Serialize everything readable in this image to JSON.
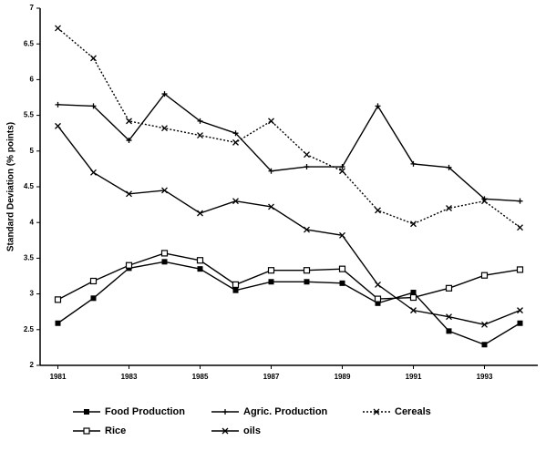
{
  "chart_data": {
    "type": "line",
    "y_label": "Standard Deviation (% points)",
    "x": [
      1981,
      1982,
      1983,
      1984,
      1985,
      1986,
      1987,
      1988,
      1989,
      1990,
      1991,
      1992,
      1993,
      1994
    ],
    "xlim": [
      1980.5,
      1994.5
    ],
    "xticks": [
      1981,
      1983,
      1985,
      1987,
      1989,
      1991,
      1993
    ],
    "ylim": [
      2,
      7
    ],
    "yticks": [
      2,
      2.5,
      3,
      3.5,
      4,
      4.5,
      5,
      5.5,
      6,
      6.5,
      7
    ],
    "legend": "bottom",
    "series": [
      {
        "name": "Food Production",
        "color": "#000000",
        "marker": "filled-square",
        "dash": "solid",
        "values": [
          2.59,
          2.94,
          3.36,
          3.45,
          3.35,
          3.05,
          3.17,
          3.17,
          3.15,
          2.87,
          3.02,
          2.48,
          2.29,
          2.59
        ]
      },
      {
        "name": "Agric. Production",
        "color": "#000000",
        "marker": "plus",
        "dash": "solid",
        "values": [
          5.65,
          5.63,
          5.15,
          5.8,
          5.42,
          5.25,
          4.72,
          4.78,
          4.78,
          5.63,
          4.82,
          4.77,
          4.33,
          4.3
        ]
      },
      {
        "name": "Cereals",
        "color": "#000000",
        "marker": "cross",
        "dash": "dotted",
        "values": [
          6.72,
          6.3,
          5.42,
          5.32,
          5.22,
          5.12,
          5.42,
          4.95,
          4.72,
          4.17,
          3.98,
          4.2,
          4.3,
          3.93
        ]
      },
      {
        "name": "Rice",
        "color": "#000000",
        "marker": "open-square",
        "dash": "solid",
        "values": [
          2.92,
          3.18,
          3.4,
          3.57,
          3.47,
          3.13,
          3.33,
          3.33,
          3.35,
          2.93,
          2.95,
          3.08,
          3.26,
          3.34
        ]
      },
      {
        "name": "oils",
        "color": "#000000",
        "marker": "cross",
        "dash": "solid",
        "values": [
          5.35,
          4.7,
          4.4,
          4.45,
          4.13,
          4.3,
          4.22,
          3.9,
          3.82,
          3.13,
          2.77,
          2.68,
          2.57,
          2.77
        ]
      }
    ]
  }
}
